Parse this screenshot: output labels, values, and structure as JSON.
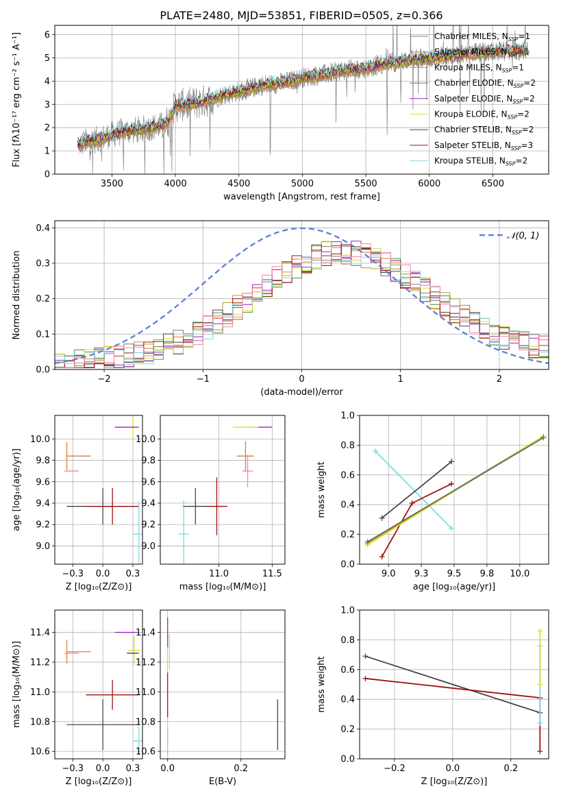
{
  "title": "PLATE=2480, MJD=53851, FIBERID=0505, z=0.366",
  "colors": {
    "grid": "#b0b0b0",
    "gaussian": "#5b86d6",
    "observed": "#808080"
  },
  "chart_data": [
    {
      "id": "spectrum",
      "type": "line",
      "xlabel": "wavelength [Angstrom, rest frame]",
      "ylabel": "Flux [fλ10⁻¹⁷ erg cm⁻² s⁻¹ A⁻¹]",
      "xlim": [
        3050,
        6940
      ],
      "ylim": [
        0,
        6.4
      ],
      "xticks": [
        3500,
        4000,
        4500,
        5000,
        5500,
        6000,
        6500
      ],
      "yticks": [
        0,
        1,
        2,
        3,
        4,
        5,
        6
      ],
      "legend": [
        {
          "name": "Chabrier MILES, N",
          "sub": "SSP",
          "tail": "=1",
          "color": "#808080"
        },
        {
          "name": "Salpeter MILES, N",
          "sub": "SSP",
          "tail": "=1",
          "color": "#e07b39"
        },
        {
          "name": "Kroupa MILES, N",
          "sub": "SSP",
          "tail": "=1",
          "color": "#b8a020"
        },
        {
          "name": "Chabrier ELODIE, N",
          "sub": "SSP",
          "tail": "=2",
          "color": "#4e8a3a"
        },
        {
          "name": "Salpeter ELODIE, N",
          "sub": "SSP",
          "tail": "=2",
          "color": "#a020c0"
        },
        {
          "name": "Kroupa ELODIE, N",
          "sub": "SSP",
          "tail": "=2",
          "color": "#d8e030"
        },
        {
          "name": "Chabrier STELIB, N",
          "sub": "SSP",
          "tail": "=2",
          "color": "#444444"
        },
        {
          "name": "Salpeter STELIB, N",
          "sub": "SSP",
          "tail": "=3",
          "color": "#a01010"
        },
        {
          "name": "Kroupa STELIB, N",
          "sub": "SSP",
          "tail": "=2",
          "color": "#80d8e0"
        }
      ],
      "model_profile": {
        "x": [
          3230,
          3300,
          3400,
          3500,
          3600,
          3700,
          3800,
          3900,
          3950,
          4000,
          4100,
          4200,
          4300,
          4400,
          4500,
          4600,
          4700,
          4800,
          4900,
          5000,
          5100,
          5200,
          5300,
          5400,
          5500,
          5600,
          5700,
          5800,
          5900,
          6000,
          6100,
          6200,
          6300,
          6400,
          6500,
          6600,
          6700,
          6750
        ],
        "y": [
          1.25,
          1.4,
          1.5,
          1.7,
          1.85,
          1.9,
          2.0,
          2.1,
          2.3,
          2.95,
          3.0,
          3.1,
          3.25,
          3.45,
          3.55,
          3.7,
          3.85,
          3.9,
          4.0,
          4.15,
          4.25,
          4.3,
          4.45,
          4.5,
          4.55,
          4.7,
          4.8,
          4.85,
          4.95,
          5.0,
          5.05,
          5.1,
          5.2,
          5.2,
          5.3,
          5.3,
          5.35,
          5.3
        ]
      }
    },
    {
      "id": "residuals",
      "type": "line",
      "xlabel": "(data-model)/error",
      "ylabel": "Normed distribution",
      "xlim": [
        -2.5,
        2.5
      ],
      "ylim": [
        0,
        0.42
      ],
      "xticks": [
        -2,
        -1,
        0,
        1,
        2
      ],
      "yticks": [
        0.0,
        0.1,
        0.2,
        0.3,
        0.4
      ],
      "legend": "𝒩(0, 1)",
      "gaussian": {
        "mu": 0,
        "sigma": 1
      }
    },
    {
      "id": "age_vs_Z",
      "type": "scatter",
      "xlabel": "Z [log₁₀(Z/Z⊙)]",
      "ylabel": "age  [log₁₀(age/yr)]",
      "xlim": [
        -0.4,
        0.33
      ],
      "ylim": [
        8.83,
        10.22
      ],
      "xticks": [
        -0.25,
        0.0,
        0.25
      ],
      "yticks": [
        9.0,
        9.2,
        9.4,
        9.6,
        9.8,
        10.0
      ],
      "points": [
        {
          "x": 0.25,
          "y": 10.11,
          "xerr": 0.05,
          "yerr": 0.1,
          "c": "#d8e030"
        },
        {
          "x": 0.2,
          "y": 10.11,
          "xerr": 0.1,
          "yerr": 0.0,
          "c": "#a020c0"
        },
        {
          "x": -0.2,
          "y": 9.84,
          "xerr": 0.1,
          "yerr": 0.0,
          "c": "#e07b39"
        },
        {
          "x": -0.3,
          "y": 9.84,
          "xerr": 0.0,
          "yerr": 0.13,
          "c": "#e07b39"
        },
        {
          "x": -0.26,
          "y": 9.7,
          "xerr": 0.06,
          "yerr": 0.0,
          "c": "#ff7fa0"
        },
        {
          "x": 0.0,
          "y": 9.37,
          "xerr": 0.3,
          "yerr": 0.17,
          "c": "#444444"
        },
        {
          "x": 0.08,
          "y": 9.37,
          "xerr": 0.22,
          "yerr": 0.17,
          "c": "#a01010"
        },
        {
          "x": 0.3,
          "y": 9.11,
          "xerr": 0.05,
          "yerr": 0.3,
          "c": "#80d8e0"
        }
      ]
    },
    {
      "id": "age_vs_mass",
      "type": "scatter",
      "xlabel": "mass [log₁₀(M/M⊙)]",
      "ylabel": "",
      "xlim": [
        10.45,
        11.62
      ],
      "ylim": [
        8.83,
        10.22
      ],
      "xticks": [
        11.0,
        11.5
      ],
      "yticks": [
        9.0,
        9.2,
        9.4,
        9.6,
        9.8,
        10.0
      ],
      "points": [
        {
          "x": 11.4,
          "y": 10.11,
          "xerr": 0.1,
          "yerr": 0.0,
          "c": "#a020c0"
        },
        {
          "x": 11.25,
          "y": 10.11,
          "xerr": 0.12,
          "yerr": 0.0,
          "c": "#d8e030"
        },
        {
          "x": 11.25,
          "y": 9.84,
          "xerr": 0.08,
          "yerr": 0.14,
          "c": "#e07b39"
        },
        {
          "x": 11.27,
          "y": 9.7,
          "xerr": 0.05,
          "yerr": 0.15,
          "c": "#ff7fa0"
        },
        {
          "x": 10.78,
          "y": 9.37,
          "xerr": 0.12,
          "yerr": 0.17,
          "c": "#444444"
        },
        {
          "x": 10.98,
          "y": 9.37,
          "xerr": 0.1,
          "yerr": 0.27,
          "c": "#a01010"
        },
        {
          "x": 10.67,
          "y": 9.11,
          "xerr": 0.05,
          "yerr": 0.32,
          "c": "#80d8e0"
        }
      ]
    },
    {
      "id": "weight_vs_age",
      "type": "line",
      "xlabel": "age  [log₁₀(age/yr)]",
      "ylabel": "mass weight",
      "xlim": [
        8.78,
        10.22
      ],
      "ylim": [
        0.0,
        1.0
      ],
      "xticks": [
        9.0,
        9.25,
        9.5,
        9.75,
        10.0
      ],
      "yticks": [
        0.0,
        0.2,
        0.4,
        0.6,
        0.8,
        1.0
      ],
      "series": [
        {
          "c": "#80d8e0",
          "pts": [
            [
              8.9,
              0.76
            ],
            [
              9.48,
              0.24
            ]
          ]
        },
        {
          "c": "#444444",
          "pts": [
            [
              8.95,
              0.31
            ],
            [
              9.48,
              0.69
            ]
          ]
        },
        {
          "c": "#a01010",
          "pts": [
            [
              8.95,
              0.05
            ],
            [
              9.18,
              0.41
            ],
            [
              9.48,
              0.54
            ]
          ]
        },
        {
          "c": "#b8a020",
          "pts": [
            [
              8.84,
              0.14
            ],
            [
              10.18,
              0.86
            ]
          ]
        },
        {
          "c": "#d8e030",
          "pts": [
            [
              8.84,
              0.13
            ],
            [
              10.18,
              0.86
            ]
          ]
        },
        {
          "c": "#666666",
          "pts": [
            [
              8.84,
              0.15
            ],
            [
              10.18,
              0.85
            ]
          ]
        }
      ]
    },
    {
      "id": "mass_vs_Z",
      "type": "scatter",
      "xlabel": "Z [log₁₀(Z/Z⊙)]",
      "ylabel": "mass [log₁₀(M/M⊙)]",
      "xlim": [
        -0.4,
        0.33
      ],
      "ylim": [
        10.55,
        11.55
      ],
      "xticks": [
        -0.25,
        0.0,
        0.25
      ],
      "yticks": [
        10.6,
        10.8,
        11.0,
        11.2,
        11.4
      ],
      "points": [
        {
          "x": 0.2,
          "y": 11.4,
          "xerr": 0.1,
          "yerr": 0.0,
          "c": "#a020c0"
        },
        {
          "x": 0.26,
          "y": 11.28,
          "xerr": 0.05,
          "yerr": 0.1,
          "c": "#d8e030"
        },
        {
          "x": -0.2,
          "y": 11.27,
          "xerr": 0.1,
          "yerr": 0.0,
          "c": "#e07b39"
        },
        {
          "x": -0.3,
          "y": 11.27,
          "xerr": 0.0,
          "yerr": 0.08,
          "c": "#e07b39"
        },
        {
          "x": -0.26,
          "y": 11.26,
          "xerr": 0.06,
          "yerr": 0.0,
          "c": "#ff7fa0"
        },
        {
          "x": 0.25,
          "y": 11.26,
          "xerr": 0.05,
          "yerr": 0.0,
          "c": "#444444"
        },
        {
          "x": 0.08,
          "y": 10.98,
          "xerr": 0.22,
          "yerr": 0.1,
          "c": "#a01010"
        },
        {
          "x": 0.0,
          "y": 10.78,
          "xerr": 0.3,
          "yerr": 0.17,
          "c": "#444444"
        },
        {
          "x": 0.3,
          "y": 10.67,
          "xerr": 0.05,
          "yerr": 0.1,
          "c": "#80d8e0"
        }
      ]
    },
    {
      "id": "mass_vs_ebv",
      "type": "scatter",
      "xlabel": "E(B-V)",
      "ylabel": "",
      "xlim": [
        -0.02,
        0.32
      ],
      "ylim": [
        10.55,
        11.55
      ],
      "xticks": [
        0.0,
        0.2
      ],
      "yticks": [
        10.6,
        10.8,
        11.0,
        11.2,
        11.4
      ],
      "points": [
        {
          "x": 0.0,
          "y": 11.4,
          "xerr": 0.0,
          "yerr": 0.1,
          "c": "#a020c0"
        },
        {
          "x": 0.005,
          "y": 11.27,
          "xerr": 0.0,
          "yerr": 0.12,
          "c": "#d8e030"
        },
        {
          "x": 0.0,
          "y": 10.98,
          "xerr": 0.0,
          "yerr": 0.15,
          "c": "#a01010"
        },
        {
          "x": 0.0,
          "y": 10.67,
          "xerr": 0.0,
          "yerr": 0.1,
          "c": "#80d8e0"
        },
        {
          "x": 0.3,
          "y": 10.78,
          "xerr": 0.0,
          "yerr": 0.17,
          "c": "#444444"
        }
      ]
    },
    {
      "id": "weight_vs_Z",
      "type": "line",
      "xlabel": "Z [log₁₀(Z/Z⊙)]",
      "ylabel": "mass weight",
      "xlim": [
        -0.32,
        0.33
      ],
      "ylim": [
        0.0,
        1.0
      ],
      "xticks": [
        -0.2,
        0.0,
        0.2
      ],
      "yticks": [
        0.0,
        0.2,
        0.4,
        0.6,
        0.8,
        1.0
      ],
      "series": [
        {
          "c": "#444444",
          "pts": [
            [
              -0.3,
              0.69
            ],
            [
              0.3,
              0.31
            ]
          ]
        },
        {
          "c": "#a01010",
          "pts": [
            [
              -0.3,
              0.54
            ],
            [
              0.3,
              0.41
            ]
          ]
        },
        {
          "c": "#a01010",
          "pts": [
            [
              0.3,
              0.41
            ],
            [
              0.3,
              0.05
            ]
          ]
        },
        {
          "c": "#80d8e0",
          "pts": [
            [
              0.3,
              0.76
            ],
            [
              0.3,
              0.24
            ]
          ]
        },
        {
          "c": "#d8e030",
          "pts": [
            [
              0.3,
              0.86
            ],
            [
              0.3,
              0.5
            ]
          ]
        }
      ]
    }
  ]
}
